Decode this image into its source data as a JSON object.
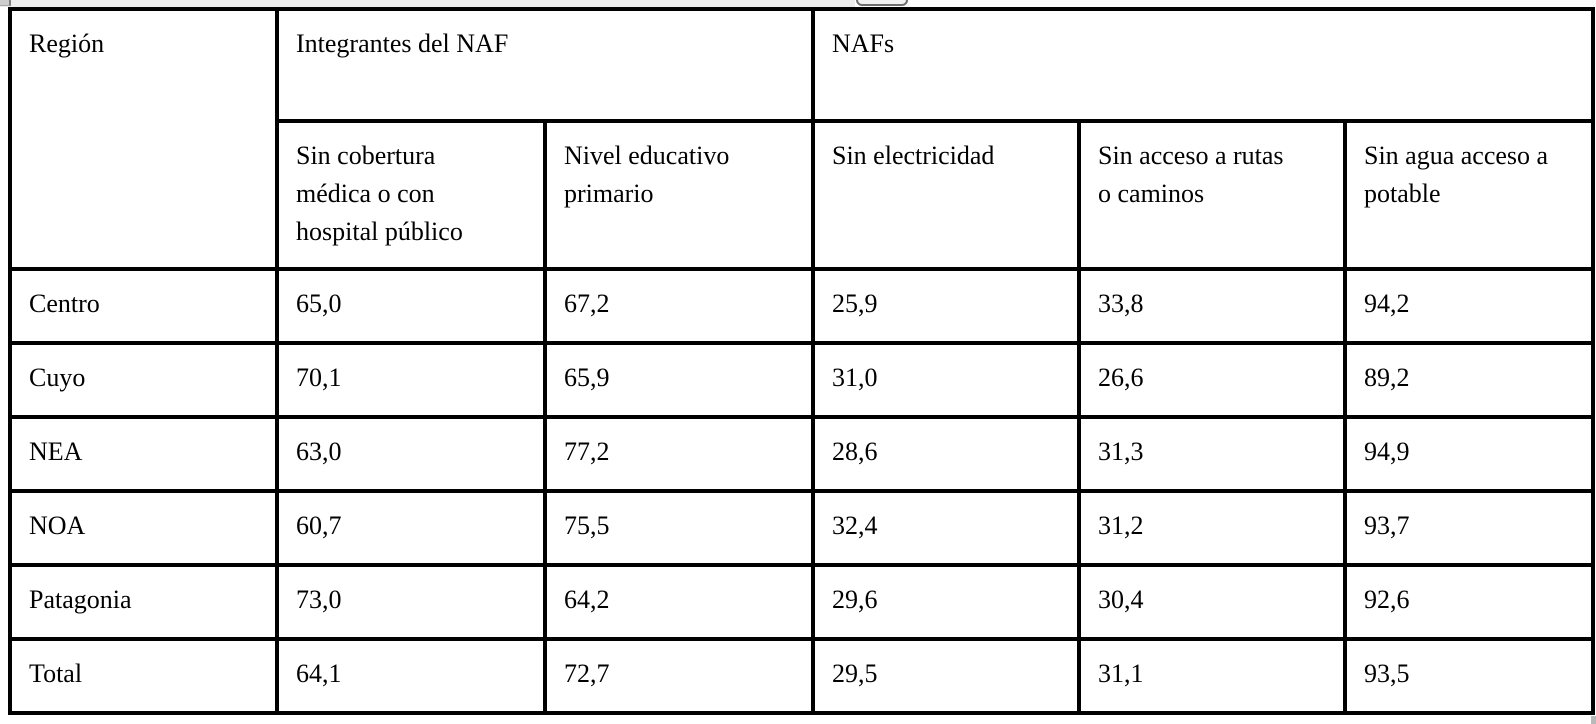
{
  "page": {
    "background_color": "#ffffff",
    "text_color": "#000000",
    "table_border_color": "#000000"
  },
  "chrome": {
    "strip_left_color": "#ececec",
    "strip_right_color": "#fbfbfb",
    "corner_widget_color": "#cdcdcd",
    "cropped_button_border_color": "#6f6f6f"
  },
  "table": {
    "header": {
      "region": "Región",
      "group_integrantes": "Integrantes del NAF",
      "group_nafs": "NAFs",
      "sub": [
        "Sin cobertura\nmédica o con\nhospital público",
        "Nivel educativo\nprimario",
        "Sin electricidad",
        "Sin acceso a rutas\no caminos",
        "Sin agua acceso a\npotable"
      ]
    },
    "rows": [
      {
        "region": "Centro",
        "values": [
          "65,0",
          "67,2",
          "25,9",
          "33,8",
          "94,2"
        ]
      },
      {
        "region": "Cuyo",
        "values": [
          "70,1",
          "65,9",
          "31,0",
          "26,6",
          "89,2"
        ]
      },
      {
        "region": "NEA",
        "values": [
          "63,0",
          "77,2",
          "28,6",
          "31,3",
          "94,9"
        ]
      },
      {
        "region": "NOA",
        "values": [
          "60,7",
          "75,5",
          "32,4",
          "31,2",
          "93,7"
        ]
      },
      {
        "region": "Patagonia",
        "values": [
          "73,0",
          "64,2",
          "29,6",
          "30,4",
          "92,6"
        ]
      },
      {
        "region": "Total",
        "values": [
          "64,1",
          "72,7",
          "29,5",
          "31,1",
          "93,5"
        ]
      }
    ]
  }
}
